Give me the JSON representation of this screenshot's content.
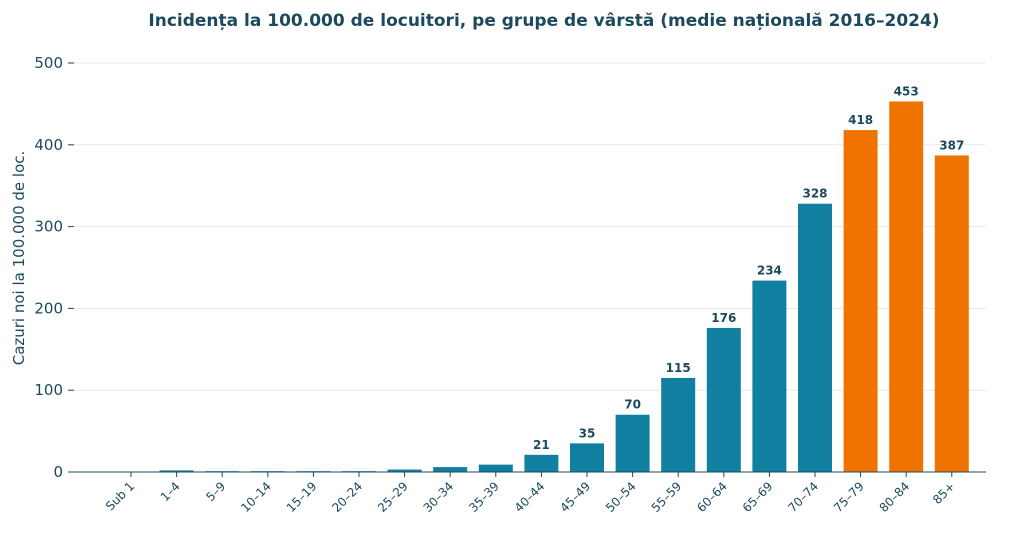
{
  "chart_data": {
    "type": "bar",
    "title": "Incidența la 100.000 de locuitori, pe grupe de vârstă (medie națională 2016–2024)",
    "xlabel": "",
    "ylabel": "Cazuri noi la 100.000 de loc.",
    "ylim": [
      0,
      500
    ],
    "yticks": [
      0,
      100,
      200,
      300,
      400,
      500
    ],
    "grid": true,
    "categories": [
      "Sub 1",
      "1–4",
      "5–9",
      "10–14",
      "15–19",
      "20–24",
      "25–29",
      "30–34",
      "35–39",
      "40–44",
      "45–49",
      "50–54",
      "55–59",
      "60–64",
      "65–69",
      "70–74",
      "75–79",
      "80–84",
      "85+"
    ],
    "values": [
      0.5,
      2,
      1,
      1,
      1,
      1,
      3,
      6,
      9,
      21,
      35,
      70,
      115,
      176,
      234,
      328,
      418,
      453,
      387
    ],
    "data_labels": [
      "",
      "",
      "",
      "",
      "",
      "",
      "",
      "",
      "",
      "21",
      "35",
      "70",
      "115",
      "176",
      "234",
      "328",
      "418",
      "453",
      "387"
    ],
    "colors": {
      "default": "#117fa0",
      "highlight": "#f07300",
      "text": "#1b4a5e",
      "grid": "#e6e9ec"
    },
    "highlight_categories": [
      "75–79",
      "80–84",
      "85+"
    ]
  }
}
